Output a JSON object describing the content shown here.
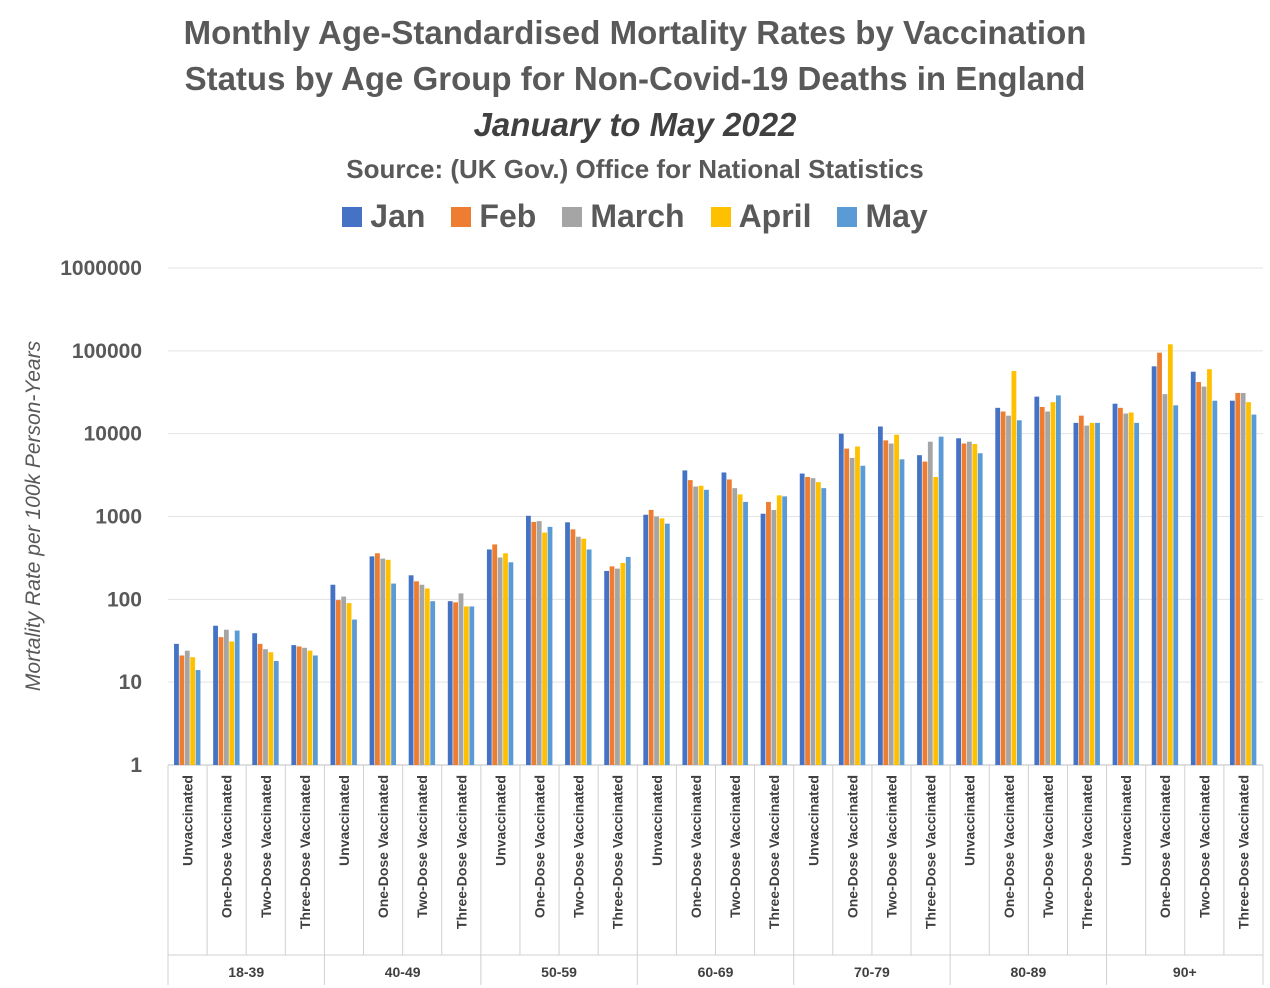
{
  "chart_data": {
    "type": "bar",
    "title": "Monthly Age-Standardised Mortality Rates by Vaccination Status by Age Group for Non-Covid-19 Deaths in England",
    "title_line1": "Monthly Age-Standardised Mortality Rates by Vaccination",
    "title_line2": "Status by Age Group for Non-Covid-19 Deaths in England",
    "subtitle": "January to May 2022",
    "source": "Source: (UK Gov.) Office for National Statistics",
    "ylabel": "Mortality Rate per 100k Person-Years",
    "yscale": "log",
    "ylim": [
      1,
      1000000
    ],
    "yticks": [
      "1",
      "10",
      "100",
      "1000",
      "10000",
      "100000",
      "1000000"
    ],
    "grid": true,
    "legend_position": "top",
    "groups": [
      "18-39",
      "40-49",
      "50-59",
      "60-69",
      "70-79",
      "80-89",
      "90+"
    ],
    "statuses": [
      "Unvaccinated",
      "One-Dose Vaccinated",
      "Two-Dose Vaccinated",
      "Three-Dose Vaccinated"
    ],
    "series": [
      {
        "name": "Jan",
        "color": "#4472C4",
        "values": [
          [
            29,
            48,
            39,
            28
          ],
          [
            150,
            330,
            195,
            95
          ],
          [
            400,
            1020,
            850,
            220
          ],
          [
            1050,
            3600,
            3400,
            1080
          ],
          [
            3300,
            10000,
            12200,
            5500
          ],
          [
            8800,
            20500,
            28000,
            13500
          ],
          [
            23000,
            65000,
            56000,
            25000
          ]
        ]
      },
      {
        "name": "Feb",
        "color": "#ED7D31",
        "values": [
          [
            21,
            35,
            29,
            27
          ],
          [
            98,
            360,
            165,
            92
          ],
          [
            460,
            860,
            700,
            250
          ],
          [
            1200,
            2750,
            2800,
            1500
          ],
          [
            3000,
            6600,
            8300,
            4600
          ],
          [
            7600,
            18500,
            21000,
            16500
          ],
          [
            20500,
            95000,
            42000,
            31000
          ]
        ]
      },
      {
        "name": "March",
        "color": "#A5A5A5",
        "values": [
          [
            24,
            43,
            25,
            26
          ],
          [
            108,
            310,
            150,
            118
          ],
          [
            320,
            880,
            570,
            235
          ],
          [
            1000,
            2300,
            2200,
            1200
          ],
          [
            2900,
            5100,
            7600,
            8000
          ],
          [
            8000,
            16500,
            18500,
            12500
          ],
          [
            17500,
            30000,
            37000,
            31000
          ]
        ]
      },
      {
        "name": "April",
        "color": "#FFC000",
        "values": [
          [
            20,
            31,
            23,
            24
          ],
          [
            90,
            300,
            135,
            82
          ],
          [
            360,
            640,
            540,
            275
          ],
          [
            950,
            2350,
            1850,
            1800
          ],
          [
            2600,
            7000,
            9700,
            3000
          ],
          [
            7500,
            57000,
            24000,
            13500
          ],
          [
            18000,
            120000,
            60000,
            24000
          ]
        ]
      },
      {
        "name": "May",
        "color": "#5B9BD5",
        "values": [
          [
            14,
            42,
            18,
            21
          ],
          [
            57,
            155,
            95,
            82
          ],
          [
            280,
            750,
            400,
            325
          ],
          [
            820,
            2100,
            1500,
            1750
          ],
          [
            2200,
            4100,
            4900,
            9200
          ],
          [
            5800,
            14500,
            29000,
            13500
          ],
          [
            13500,
            22000,
            25000,
            17000
          ]
        ]
      }
    ]
  }
}
